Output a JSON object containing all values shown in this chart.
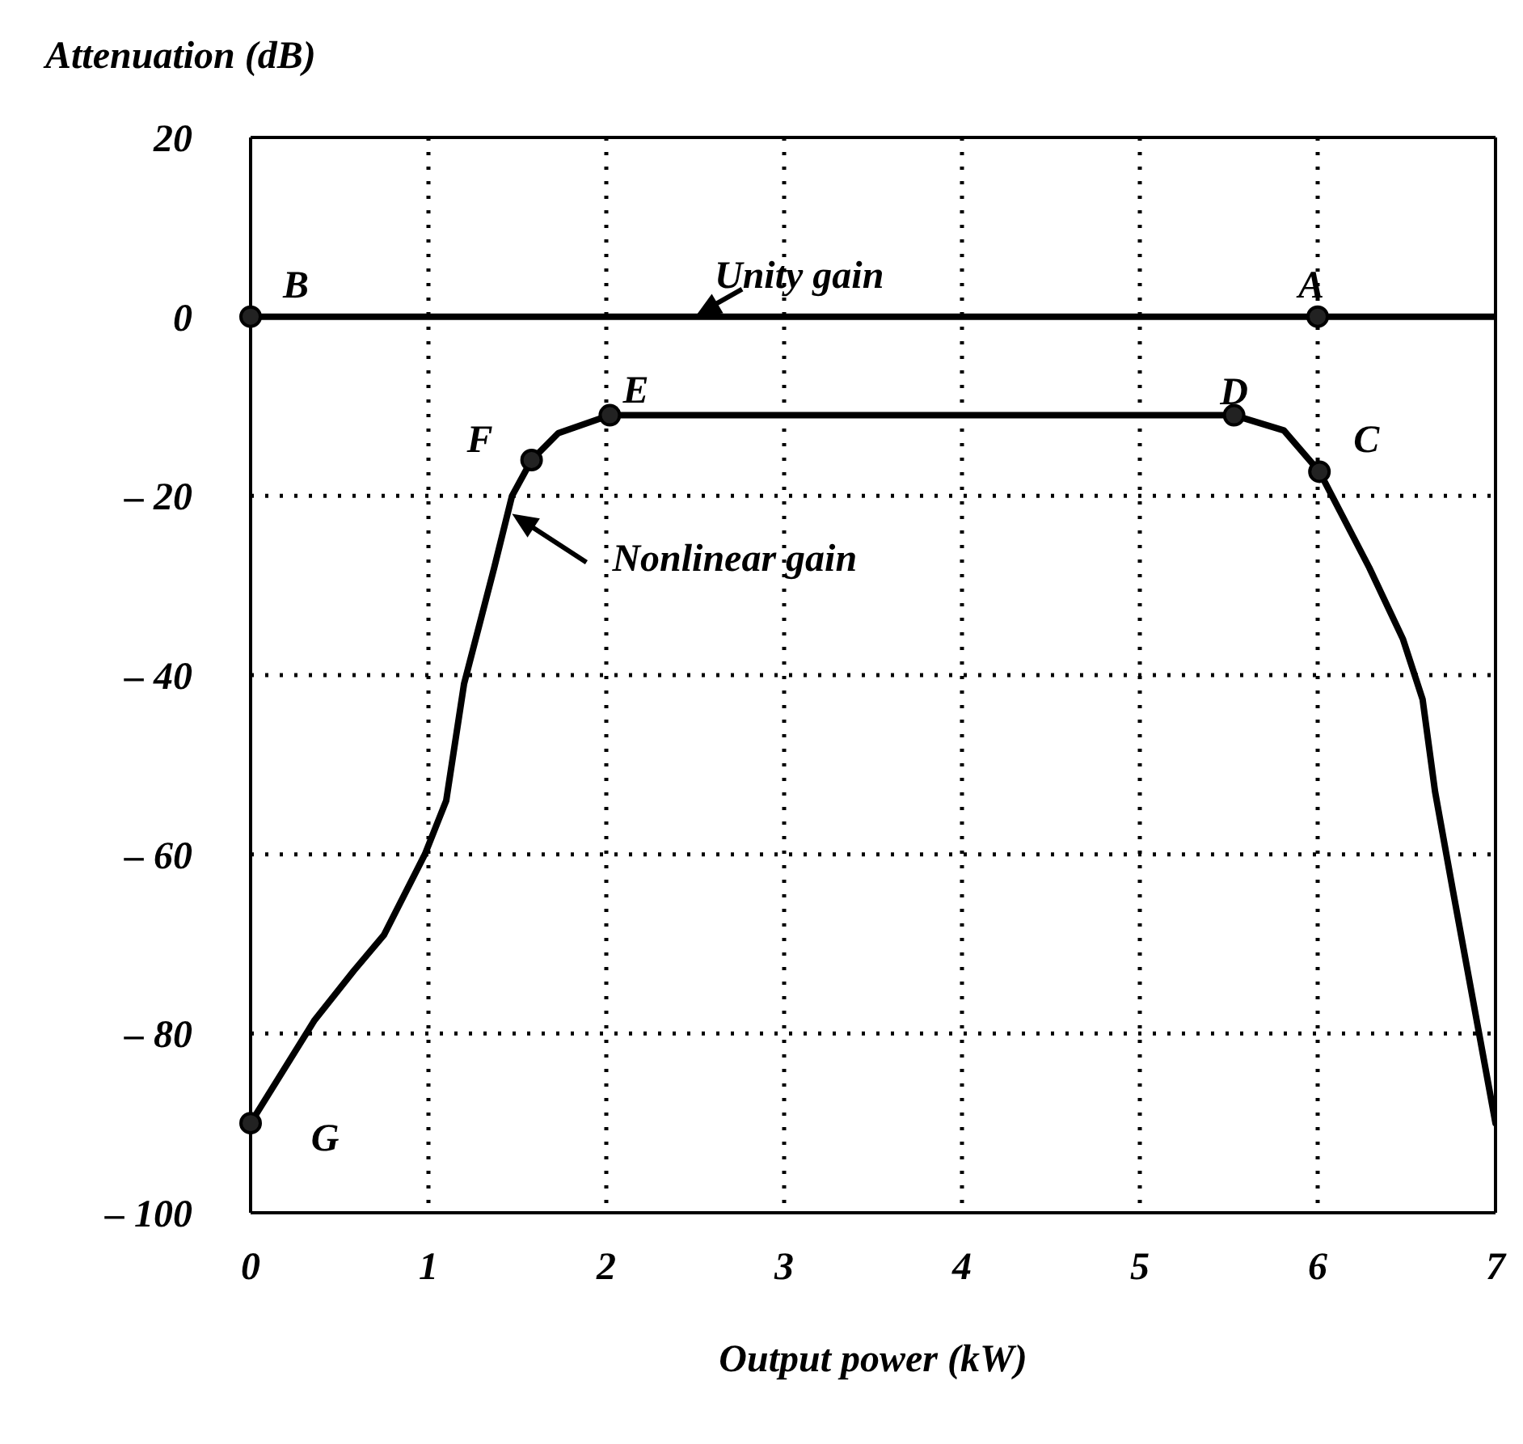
{
  "chart_data": {
    "type": "line",
    "xlabel": "Output power (kW)",
    "ylabel": "Attenuation (dB)",
    "xlim": [
      0,
      7
    ],
    "xticks": [
      0,
      1,
      2,
      3,
      4,
      5,
      6,
      7
    ],
    "ylim": [
      -100,
      20
    ],
    "yticks": [
      20,
      0,
      {
        "value": -20,
        "label": "– 20"
      },
      {
        "value": -40,
        "label": "– 40"
      },
      {
        "value": -60,
        "label": "– 60"
      },
      {
        "value": -80,
        "label": "– 80"
      },
      {
        "value": -100,
        "label": "– 100"
      }
    ],
    "grid": true,
    "line_style": "solid",
    "series": [
      {
        "color": "#000000",
        "x": [
          0,
          7
        ],
        "values": [
          0,
          0
        ]
      },
      {
        "color": "#000000",
        "x": [
          0,
          0.36,
          0.58,
          0.75,
          0.98,
          1.1,
          1.2,
          1.37,
          1.47,
          1.58,
          1.73,
          2.02,
          5.53,
          5.81,
          6.01,
          6.29,
          6.48,
          6.59,
          6.66,
          6.76,
          7
        ],
        "values": [
          -90,
          -78.5,
          -73,
          -69,
          -60,
          -54,
          -41,
          -28,
          -20,
          -16,
          -13,
          -11,
          -11,
          -12.7,
          -17.3,
          -28,
          -36,
          -42.7,
          -53,
          -64,
          -90
        ]
      }
    ],
    "annotations": [
      {
        "text": "B",
        "x": 0,
        "y": 0
      },
      {
        "text": "A",
        "x": 6,
        "y": 0
      },
      {
        "text": "E",
        "x": 2.02,
        "y": -11
      },
      {
        "text": "D",
        "x": 5.53,
        "y": -11
      },
      {
        "text": "F",
        "x": 1.58,
        "y": -16
      },
      {
        "text": "C",
        "x": 6.01,
        "y": -17.3
      },
      {
        "text": "G",
        "x": 0,
        "y": -90
      },
      {
        "text": "Unity gain",
        "x": 2.5,
        "y": 0
      },
      {
        "text": "Nonlinear gain",
        "x": 1.47,
        "y": -22
      }
    ]
  }
}
